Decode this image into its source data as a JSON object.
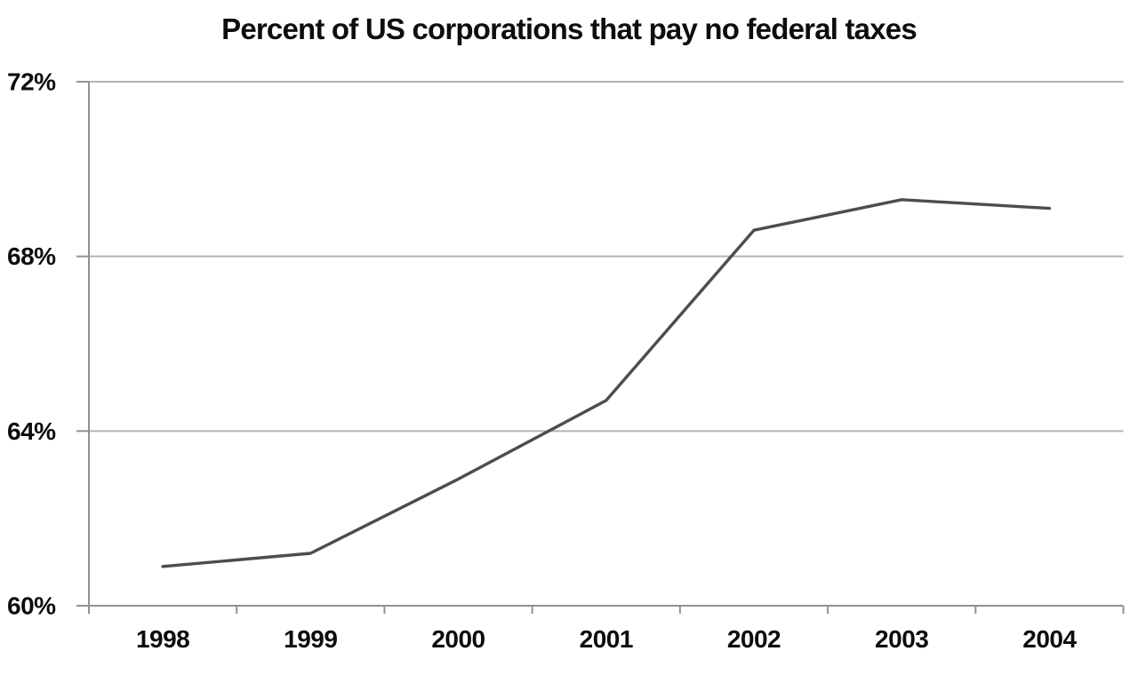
{
  "chart_data": {
    "type": "line",
    "title": "Percent of US corporations that pay no federal taxes",
    "categories": [
      "1998",
      "1999",
      "2000",
      "2001",
      "2002",
      "2003",
      "2004"
    ],
    "values": [
      60.9,
      61.2,
      62.9,
      64.7,
      68.6,
      69.3,
      69.1
    ],
    "unit": "%",
    "xlabel": "",
    "ylabel": "",
    "ylim": [
      60,
      72
    ],
    "ytick_values": [
      72,
      68,
      64,
      60
    ],
    "ytick_labels": [
      "72%",
      "68%",
      "64%",
      "60%"
    ],
    "grid": "horizontal",
    "legend": "none",
    "colors": {
      "background": "#ffffff",
      "line": "#4d4d4d",
      "gridline": "#b3b3b3",
      "axis": "#919191",
      "text": "#0d0d0d"
    }
  }
}
